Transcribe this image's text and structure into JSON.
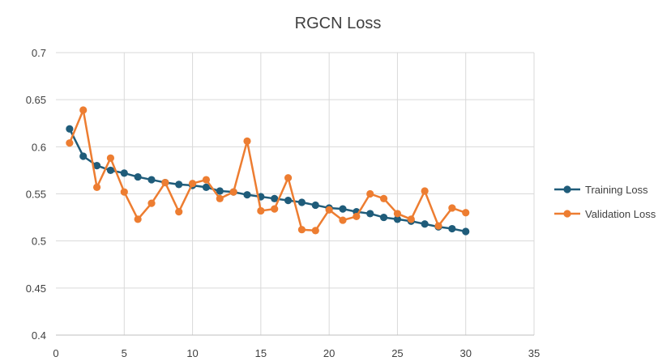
{
  "chart_data": {
    "type": "line",
    "title": "RGCN  Loss",
    "xlabel": "",
    "ylabel": "",
    "xlim": [
      0,
      35
    ],
    "ylim": [
      0.4,
      0.7
    ],
    "xticks": [
      0,
      5,
      10,
      15,
      20,
      25,
      30,
      35
    ],
    "yticks": [
      0.4,
      0.45,
      0.5,
      0.55,
      0.6,
      0.65,
      0.7
    ],
    "ytick_labels": [
      "0.4",
      "0.45",
      "0.5",
      "0.55",
      "0.6",
      "0.65",
      "0.7"
    ],
    "grid": true,
    "legend_position": "right",
    "x": [
      1,
      2,
      3,
      4,
      5,
      6,
      7,
      8,
      9,
      10,
      11,
      12,
      13,
      14,
      15,
      16,
      17,
      18,
      19,
      20,
      21,
      22,
      23,
      24,
      25,
      26,
      27,
      28,
      29,
      30
    ],
    "series": [
      {
        "name": "Training Loss",
        "color": "#1F5C7A",
        "values": [
          0.619,
          0.59,
          0.58,
          0.575,
          0.572,
          0.568,
          0.565,
          0.562,
          0.56,
          0.559,
          0.557,
          0.553,
          0.552,
          0.549,
          0.547,
          0.545,
          0.543,
          0.541,
          0.538,
          0.535,
          0.534,
          0.531,
          0.529,
          0.525,
          0.523,
          0.521,
          0.518,
          0.515,
          0.513,
          0.51
        ]
      },
      {
        "name": "Validation Loss",
        "color": "#ED7D31",
        "values": [
          0.604,
          0.639,
          0.557,
          0.588,
          0.552,
          0.523,
          0.54,
          0.562,
          0.531,
          0.561,
          0.565,
          0.545,
          0.552,
          0.606,
          0.532,
          0.534,
          0.567,
          0.512,
          0.511,
          0.533,
          0.522,
          0.526,
          0.55,
          0.545,
          0.529,
          0.523,
          0.553,
          0.516,
          0.535,
          0.53
        ]
      }
    ]
  }
}
